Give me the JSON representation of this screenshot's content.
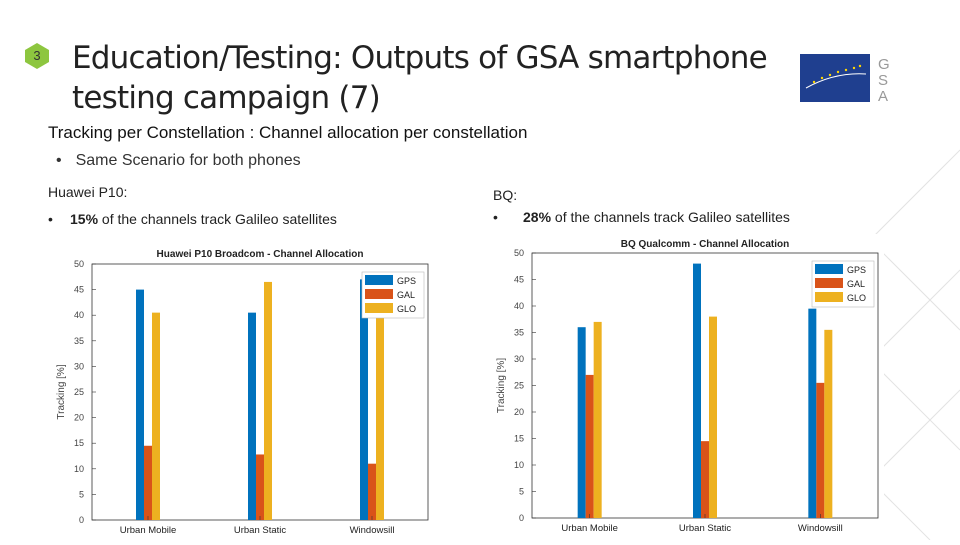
{
  "slide_number": "3",
  "title_line1": "Education/Testing: Outputs of GSA smartphone",
  "title_line2": "testing campaign (7)",
  "logo_letters": "GSA",
  "subtitle": "Tracking per Constellation : Channel allocation per constellation",
  "bullet": "Same Scenario for both phones",
  "left": {
    "heading": "Huawei P10:",
    "pct": "15%",
    "text": " of the channels track Galileo satellites"
  },
  "right": {
    "heading": "BQ:",
    "pct": "28%",
    "text": " of the channels track Galileo satellites"
  },
  "colors": {
    "GPS": "#0072bd",
    "GAL": "#d95319",
    "GLO": "#edb120"
  },
  "chart_data": [
    {
      "type": "bar",
      "title": "Huawei P10 Broadcom - Channel Allocation",
      "ylabel": "Tracking [%]",
      "xlabel": "",
      "categories": [
        "Urban Mobile",
        "Urban Static",
        "Windowsill"
      ],
      "series": [
        {
          "name": "GPS",
          "values": [
            45,
            40.5,
            47
          ]
        },
        {
          "name": "GAL",
          "values": [
            14.5,
            12.8,
            11
          ]
        },
        {
          "name": "GLO",
          "values": [
            40.5,
            46.5,
            41
          ]
        }
      ],
      "ylim": [
        0,
        50
      ],
      "yticks": [
        0,
        5,
        10,
        15,
        20,
        25,
        30,
        35,
        40,
        45,
        50
      ],
      "legend": "top-right",
      "grid": false
    },
    {
      "type": "bar",
      "title": "BQ Qualcomm - Channel Allocation",
      "ylabel": "Tracking [%]",
      "xlabel": "",
      "categories": [
        "Urban Mobile",
        "Urban Static",
        "Windowsill"
      ],
      "series": [
        {
          "name": "GPS",
          "values": [
            36,
            48,
            39.5
          ]
        },
        {
          "name": "GAL",
          "values": [
            27,
            14.5,
            25.5
          ]
        },
        {
          "name": "GLO",
          "values": [
            37,
            38,
            35.5
          ]
        }
      ],
      "ylim": [
        0,
        50
      ],
      "yticks": [
        0,
        5,
        10,
        15,
        20,
        25,
        30,
        35,
        40,
        45,
        50
      ],
      "legend": "top-right",
      "grid": false
    }
  ]
}
